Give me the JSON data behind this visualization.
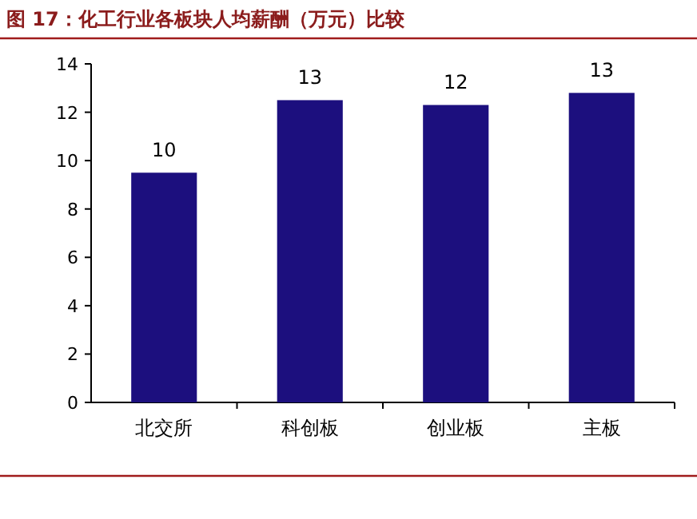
{
  "chart_data": {
    "type": "bar",
    "title": "图 17：化工行业各板块人均薪酬（万元）比较",
    "categories": [
      "北交所",
      "科创板",
      "创业板",
      "主板"
    ],
    "values": [
      9.5,
      12.5,
      12.3,
      12.8
    ],
    "value_labels": [
      "10",
      "13",
      "12",
      "13"
    ],
    "color": "#1c0f7e",
    "ylim": [
      0,
      14
    ],
    "yticks": [
      0,
      2,
      4,
      6,
      8,
      10,
      12,
      14
    ],
    "grid": false
  }
}
